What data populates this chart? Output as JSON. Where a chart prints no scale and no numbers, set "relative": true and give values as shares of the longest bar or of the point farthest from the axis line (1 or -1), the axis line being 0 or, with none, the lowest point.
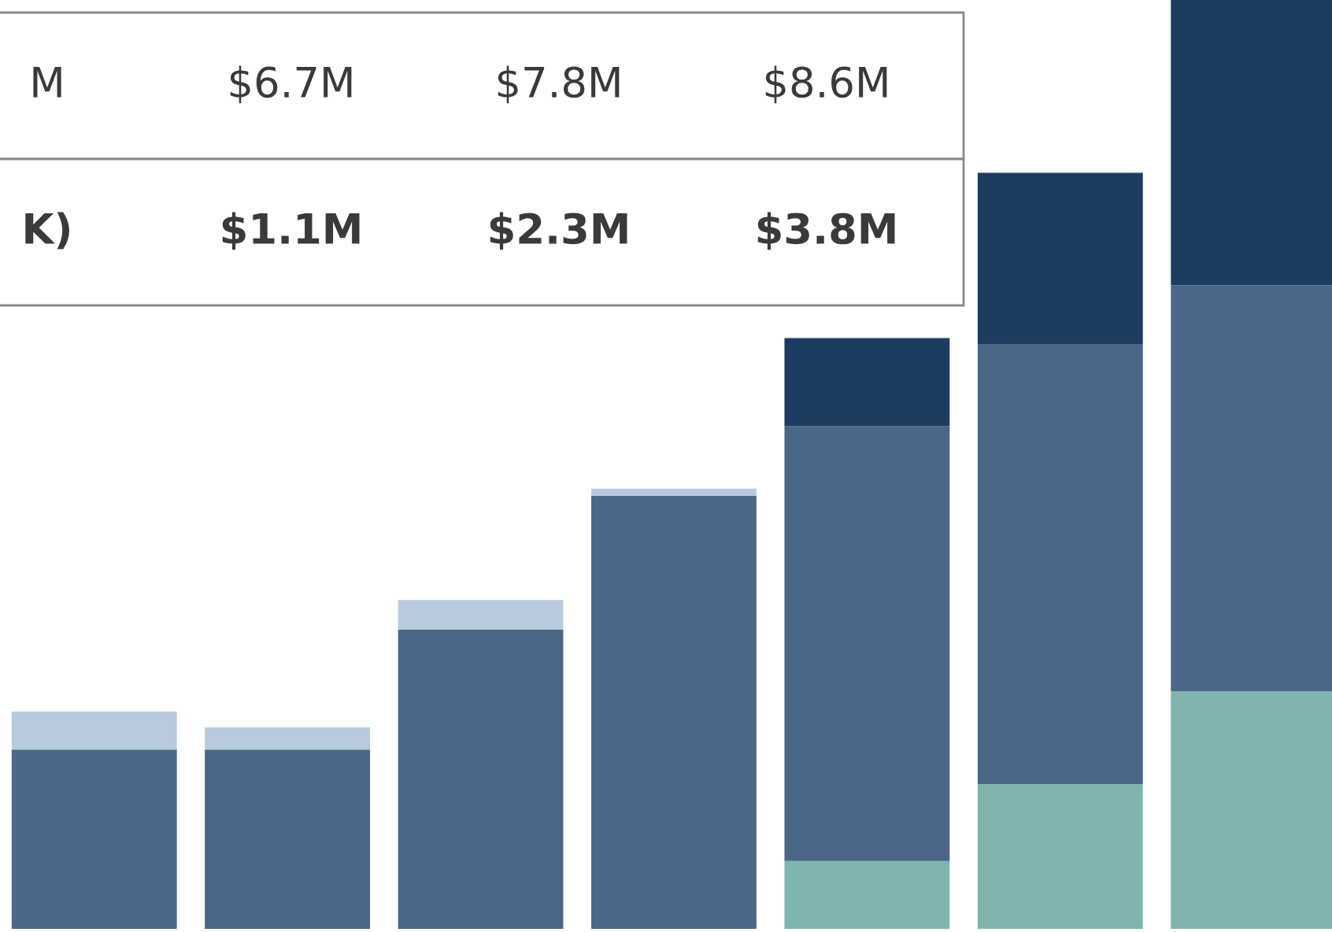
{
  "chart_data": {
    "type": "bar",
    "stacked": true,
    "relative": true,
    "categories": [
      null,
      null,
      null,
      null,
      null,
      null,
      null
    ],
    "series": [
      {
        "color": "#7fb5ae",
        "values": [
          null,
          null,
          null,
          null,
          0.073,
          0.156,
          0.256
        ]
      },
      {
        "color": "#4a6788",
        "values": [
          0.193,
          0.193,
          0.322,
          0.466,
          0.468,
          0.473,
          0.437
        ]
      },
      {
        "color": "#b8cade",
        "values": [
          0.041,
          0.024,
          0.032,
          0.008,
          null,
          null,
          null
        ]
      },
      {
        "color": "#1c3d61",
        "values": [
          null,
          null,
          null,
          null,
          0.095,
          0.185,
          0.307
        ]
      }
    ],
    "annotations": [
      "M",
      "$6.7M",
      "$7.8M",
      "$8.6M",
      "K)",
      "$1.1M",
      "$2.3M",
      "$3.8M"
    ],
    "legend": false
  }
}
